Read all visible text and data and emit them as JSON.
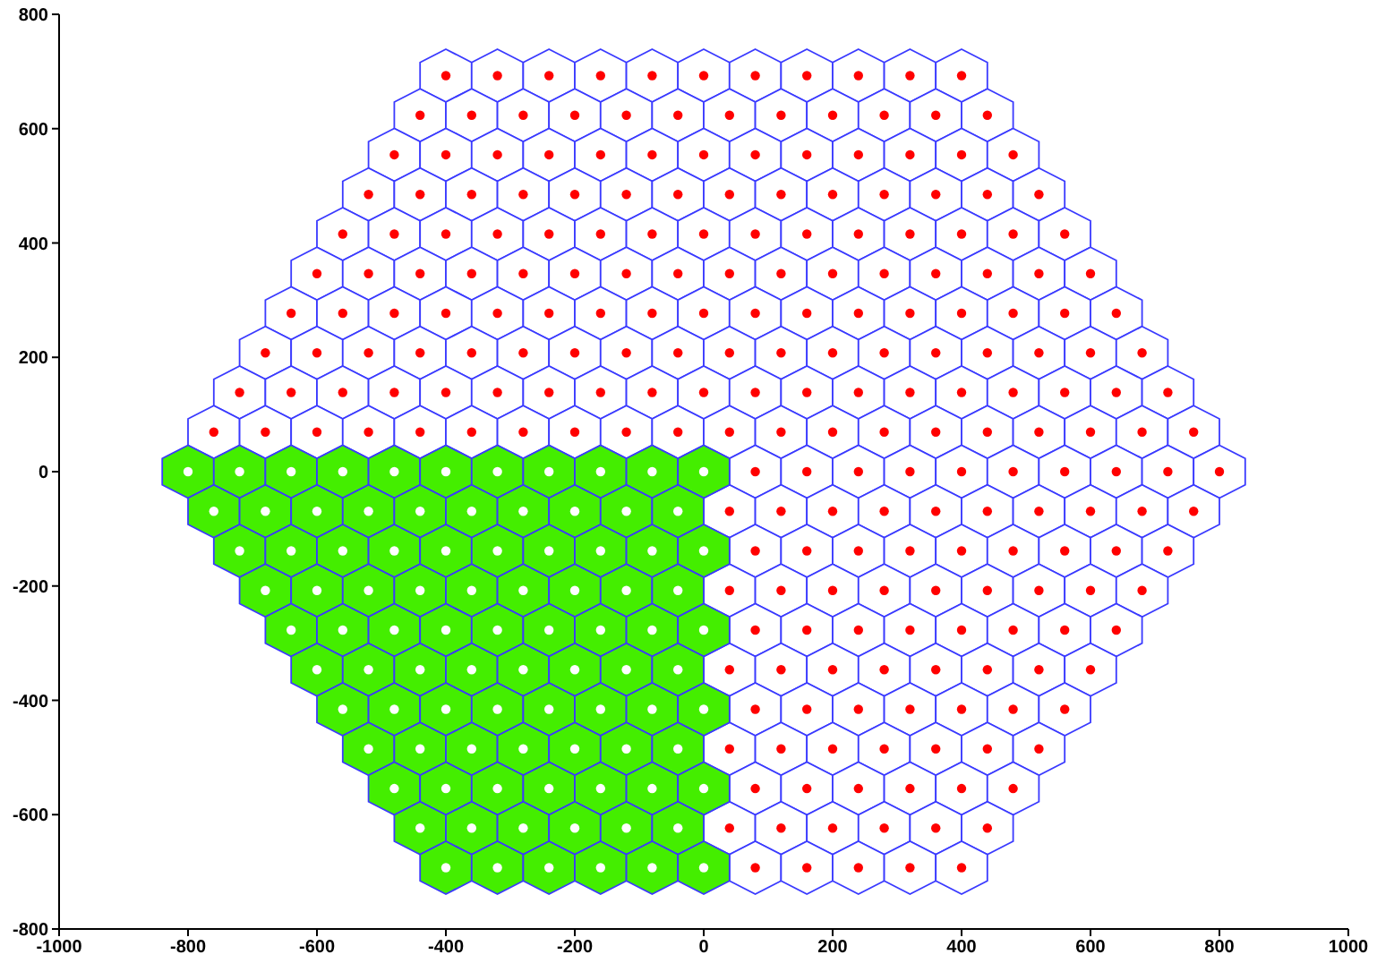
{
  "chart_data": {
    "type": "scatter",
    "xlim": [
      -1000,
      1000
    ],
    "ylim": [
      -800,
      800
    ],
    "xticks": [
      -1000,
      -800,
      -600,
      -400,
      -200,
      0,
      200,
      400,
      600,
      800,
      1000
    ],
    "yticks": [
      -800,
      -600,
      -400,
      -200,
      0,
      200,
      400,
      600,
      800
    ],
    "grid": false,
    "legend": false,
    "marker": "circle",
    "series": [
      {
        "color": "#ff0000",
        "x": [
          -400,
          -320,
          -240,
          -160,
          -80,
          0,
          80,
          160,
          240,
          320,
          400,
          -440,
          -360,
          -280,
          -200,
          -120,
          -40,
          40,
          120,
          200,
          280,
          360,
          440,
          -480,
          -400,
          -320,
          -240,
          -160,
          -80,
          0,
          80,
          160,
          240,
          320,
          400,
          480,
          -520,
          -440,
          -360,
          -280,
          -200,
          -120,
          -40,
          40,
          120,
          200,
          280,
          360,
          440,
          520,
          -560,
          -480,
          -400,
          -320,
          -240,
          -160,
          -80,
          0,
          80,
          160,
          240,
          320,
          400,
          480,
          560,
          -600,
          -520,
          -440,
          -360,
          -280,
          -200,
          -120,
          -40,
          40,
          120,
          200,
          280,
          360,
          440,
          520,
          600,
          -640,
          -560,
          -480,
          -400,
          -320,
          -240,
          -160,
          -80,
          0,
          80,
          160,
          240,
          320,
          400,
          480,
          560,
          640,
          -680,
          -600,
          -520,
          -440,
          -360,
          -280,
          -200,
          -120,
          -40,
          40,
          120,
          200,
          280,
          360,
          440,
          520,
          600,
          680,
          -720,
          -640,
          -560,
          -480,
          -400,
          -320,
          -240,
          -160,
          -80,
          0,
          80,
          160,
          240,
          320,
          400,
          480,
          560,
          640,
          720,
          -760,
          -680,
          -600,
          -520,
          -440,
          -360,
          -280,
          -200,
          -120,
          -40,
          40,
          120,
          200,
          280,
          360,
          440,
          520,
          600,
          680,
          760,
          80,
          160,
          240,
          320,
          400,
          480,
          560,
          640,
          720,
          800,
          40,
          120,
          200,
          280,
          360,
          440,
          520,
          600,
          680,
          760,
          80,
          160,
          240,
          320,
          400,
          480,
          560,
          640,
          720,
          40,
          120,
          200,
          280,
          360,
          440,
          520,
          600,
          680,
          80,
          160,
          240,
          320,
          400,
          480,
          560,
          640,
          40,
          120,
          200,
          280,
          360,
          440,
          520,
          600,
          80,
          160,
          240,
          320,
          400,
          480,
          560,
          40,
          120,
          200,
          280,
          360,
          440,
          520,
          80,
          160,
          240,
          320,
          400,
          480,
          40,
          120,
          200,
          280,
          360,
          440,
          80,
          160,
          240,
          320,
          400
        ],
        "values": [
          692.8,
          692.8,
          692.8,
          692.8,
          692.8,
          692.8,
          692.8,
          692.8,
          692.8,
          692.8,
          692.8,
          623.5,
          623.5,
          623.5,
          623.5,
          623.5,
          623.5,
          623.5,
          623.5,
          623.5,
          623.5,
          623.5,
          623.5,
          554.3,
          554.3,
          554.3,
          554.3,
          554.3,
          554.3,
          554.3,
          554.3,
          554.3,
          554.3,
          554.3,
          554.3,
          554.3,
          485,
          485,
          485,
          485,
          485,
          485,
          485,
          485,
          485,
          485,
          485,
          485,
          485,
          485,
          415.7,
          415.7,
          415.7,
          415.7,
          415.7,
          415.7,
          415.7,
          415.7,
          415.7,
          415.7,
          415.7,
          415.7,
          415.7,
          415.7,
          415.7,
          346.4,
          346.4,
          346.4,
          346.4,
          346.4,
          346.4,
          346.4,
          346.4,
          346.4,
          346.4,
          346.4,
          346.4,
          346.4,
          346.4,
          346.4,
          346.4,
          277.1,
          277.1,
          277.1,
          277.1,
          277.1,
          277.1,
          277.1,
          277.1,
          277.1,
          277.1,
          277.1,
          277.1,
          277.1,
          277.1,
          277.1,
          277.1,
          277.1,
          207.8,
          207.8,
          207.8,
          207.8,
          207.8,
          207.8,
          207.8,
          207.8,
          207.8,
          207.8,
          207.8,
          207.8,
          207.8,
          207.8,
          207.8,
          207.8,
          207.8,
          207.8,
          138.6,
          138.6,
          138.6,
          138.6,
          138.6,
          138.6,
          138.6,
          138.6,
          138.6,
          138.6,
          138.6,
          138.6,
          138.6,
          138.6,
          138.6,
          138.6,
          138.6,
          138.6,
          138.6,
          69.3,
          69.3,
          69.3,
          69.3,
          69.3,
          69.3,
          69.3,
          69.3,
          69.3,
          69.3,
          69.3,
          69.3,
          69.3,
          69.3,
          69.3,
          69.3,
          69.3,
          69.3,
          69.3,
          69.3,
          0,
          0,
          0,
          0,
          0,
          0,
          0,
          0,
          0,
          0,
          -69.3,
          -69.3,
          -69.3,
          -69.3,
          -69.3,
          -69.3,
          -69.3,
          -69.3,
          -69.3,
          -69.3,
          -138.6,
          -138.6,
          -138.6,
          -138.6,
          -138.6,
          -138.6,
          -138.6,
          -138.6,
          -138.6,
          -207.8,
          -207.8,
          -207.8,
          -207.8,
          -207.8,
          -207.8,
          -207.8,
          -207.8,
          -207.8,
          -277.1,
          -277.1,
          -277.1,
          -277.1,
          -277.1,
          -277.1,
          -277.1,
          -277.1,
          -346.4,
          -346.4,
          -346.4,
          -346.4,
          -346.4,
          -346.4,
          -346.4,
          -346.4,
          -415.7,
          -415.7,
          -415.7,
          -415.7,
          -415.7,
          -415.7,
          -415.7,
          -485,
          -485,
          -485,
          -485,
          -485,
          -485,
          -485,
          -554.3,
          -554.3,
          -554.3,
          -554.3,
          -554.3,
          -554.3,
          -623.5,
          -623.5,
          -623.5,
          -623.5,
          -623.5,
          -623.5,
          -692.8,
          -692.8,
          -692.8,
          -692.8,
          -692.8
        ]
      },
      {
        "color": "#44ee00",
        "x": [
          -800,
          -720,
          -640,
          -560,
          -480,
          -400,
          -320,
          -240,
          -160,
          -80,
          0,
          -760,
          -680,
          -600,
          -520,
          -440,
          -360,
          -280,
          -200,
          -120,
          -40,
          -720,
          -640,
          -560,
          -480,
          -400,
          -320,
          -240,
          -160,
          -80,
          0,
          -680,
          -600,
          -520,
          -440,
          -360,
          -280,
          -200,
          -120,
          -40,
          -640,
          -560,
          -480,
          -400,
          -320,
          -240,
          -160,
          -80,
          0,
          -600,
          -520,
          -440,
          -360,
          -280,
          -200,
          -120,
          -40,
          -560,
          -480,
          -400,
          -320,
          -240,
          -160,
          -80,
          0,
          -520,
          -440,
          -360,
          -280,
          -200,
          -120,
          -40,
          -480,
          -400,
          -320,
          -240,
          -160,
          -80,
          0,
          -440,
          -360,
          -280,
          -200,
          -120,
          -40,
          -400,
          -320,
          -240,
          -160,
          -80,
          0
        ],
        "values": [
          0,
          0,
          0,
          0,
          0,
          0,
          0,
          0,
          0,
          0,
          0,
          -69.3,
          -69.3,
          -69.3,
          -69.3,
          -69.3,
          -69.3,
          -69.3,
          -69.3,
          -69.3,
          -69.3,
          -138.6,
          -138.6,
          -138.6,
          -138.6,
          -138.6,
          -138.6,
          -138.6,
          -138.6,
          -138.6,
          -138.6,
          -207.8,
          -207.8,
          -207.8,
          -207.8,
          -207.8,
          -207.8,
          -207.8,
          -207.8,
          -207.8,
          -277.1,
          -277.1,
          -277.1,
          -277.1,
          -277.1,
          -277.1,
          -277.1,
          -277.1,
          -277.1,
          -346.4,
          -346.4,
          -346.4,
          -346.4,
          -346.4,
          -346.4,
          -346.4,
          -346.4,
          -415.7,
          -415.7,
          -415.7,
          -415.7,
          -415.7,
          -415.7,
          -415.7,
          -415.7,
          -485,
          -485,
          -485,
          -485,
          -485,
          -485,
          -485,
          -554.3,
          -554.3,
          -554.3,
          -554.3,
          -554.3,
          -554.3,
          -554.3,
          -623.5,
          -623.5,
          -623.5,
          -623.5,
          -623.5,
          -623.5,
          -692.8,
          -692.8,
          -692.8,
          -692.8,
          -692.8,
          -692.8
        ]
      }
    ]
  }
}
